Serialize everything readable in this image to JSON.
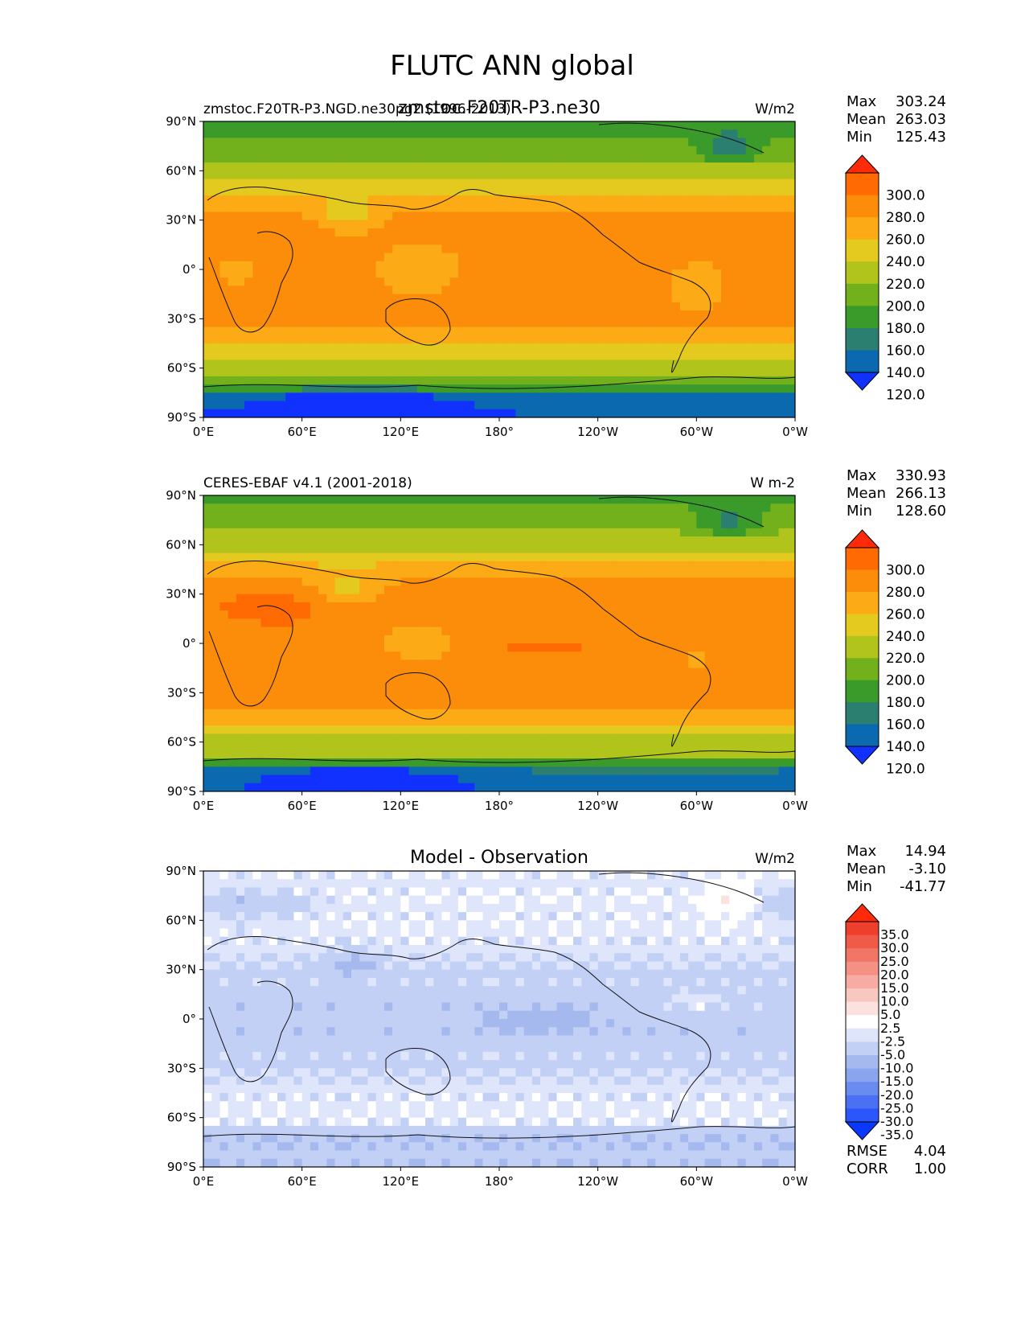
{
  "figure": {
    "title": "FLUTC ANN global"
  },
  "chart_data": [
    {
      "type": "heatmap",
      "title_left": "zmstoc.F20TR-P3.NGD.ne30pg2 (1996-2013)",
      "title_center": "zmstoc.F20TR-P3.ne30",
      "units": "W/m2",
      "xlim": [
        0,
        360
      ],
      "ylim": [
        -90,
        90
      ],
      "xticks": [
        "0°E",
        "60°E",
        "120°E",
        "180°",
        "120°W",
        "60°W",
        "0°W"
      ],
      "yticks": [
        "90°N",
        "60°N",
        "30°N",
        "0°",
        "30°S",
        "60°S",
        "90°S"
      ],
      "stats": [
        {
          "label": "Max",
          "value": "303.24"
        },
        {
          "label": "Mean",
          "value": "263.03"
        },
        {
          "label": "Min",
          "value": "125.43"
        }
      ],
      "colorbar_labels": [
        "300.0",
        "280.0",
        "260.0",
        "240.0",
        "220.0",
        "200.0",
        "180.0",
        "160.0",
        "140.0",
        "120.0"
      ],
      "colorbar_colors": [
        "#1131ff",
        "#0b6aaf",
        "#2b7f71",
        "#3a9b2a",
        "#73b11c",
        "#b1c41c",
        "#e4c91e",
        "#fcaa15",
        "#fb8d0a",
        "#ff6a03",
        "#ff2a0a"
      ],
      "field": "model"
    },
    {
      "type": "heatmap",
      "title_left": "CERES-EBAF v4.1 (2001-2018)",
      "title_center": "",
      "units": "W m-2",
      "xlim": [
        0,
        360
      ],
      "ylim": [
        -90,
        90
      ],
      "xticks": [
        "0°E",
        "60°E",
        "120°E",
        "180°",
        "120°W",
        "60°W",
        "0°W"
      ],
      "yticks": [
        "90°N",
        "60°N",
        "30°N",
        "0°",
        "30°S",
        "60°S",
        "90°S"
      ],
      "stats": [
        {
          "label": "Max",
          "value": "330.93"
        },
        {
          "label": "Mean",
          "value": "266.13"
        },
        {
          "label": "Min",
          "value": "128.60"
        }
      ],
      "colorbar_labels": [
        "300.0",
        "280.0",
        "260.0",
        "240.0",
        "220.0",
        "200.0",
        "180.0",
        "160.0",
        "140.0",
        "120.0"
      ],
      "colorbar_colors": [
        "#1131ff",
        "#0b6aaf",
        "#2b7f71",
        "#3a9b2a",
        "#73b11c",
        "#b1c41c",
        "#e4c91e",
        "#fcaa15",
        "#fb8d0a",
        "#ff6a03",
        "#ff2a0a"
      ],
      "field": "obs"
    },
    {
      "type": "heatmap",
      "title_left": "",
      "title_center": "Model - Observation",
      "units": "W/m2",
      "xlim": [
        0,
        360
      ],
      "ylim": [
        -90,
        90
      ],
      "xticks": [
        "0°E",
        "60°E",
        "120°E",
        "180°",
        "120°W",
        "60°W",
        "0°W"
      ],
      "yticks": [
        "90°N",
        "60°N",
        "30°N",
        "0°",
        "30°S",
        "60°S",
        "90°S"
      ],
      "stats": [
        {
          "label": "Max",
          "value": "14.94"
        },
        {
          "label": "Mean",
          "value": "-3.10"
        },
        {
          "label": "Min",
          "value": "-41.77"
        }
      ],
      "colorbar_labels": [
        "35.0",
        "30.0",
        "25.0",
        "20.0",
        "15.0",
        "10.0",
        "5.0",
        "2.5",
        "-2.5",
        "-5.0",
        "-10.0",
        "-15.0",
        "-20.0",
        "-25.0",
        "-30.0",
        "-35.0"
      ],
      "colorbar_colors": [
        "#0b38ff",
        "#2b56fb",
        "#4c70f4",
        "#6a8bf0",
        "#8aa4ed",
        "#a6b9ef",
        "#c3d0f6",
        "#dfe6fc",
        "#ffffff",
        "#fbe2df",
        "#f8c7c0",
        "#f6aca2",
        "#f49184",
        "#f27666",
        "#f05a48",
        "#ee3f2c",
        "#ff2a0a"
      ],
      "field": "diff",
      "metrics": [
        {
          "label": "RMSE",
          "value": "4.04"
        },
        {
          "label": "CORR",
          "value": "1.00"
        }
      ]
    }
  ]
}
